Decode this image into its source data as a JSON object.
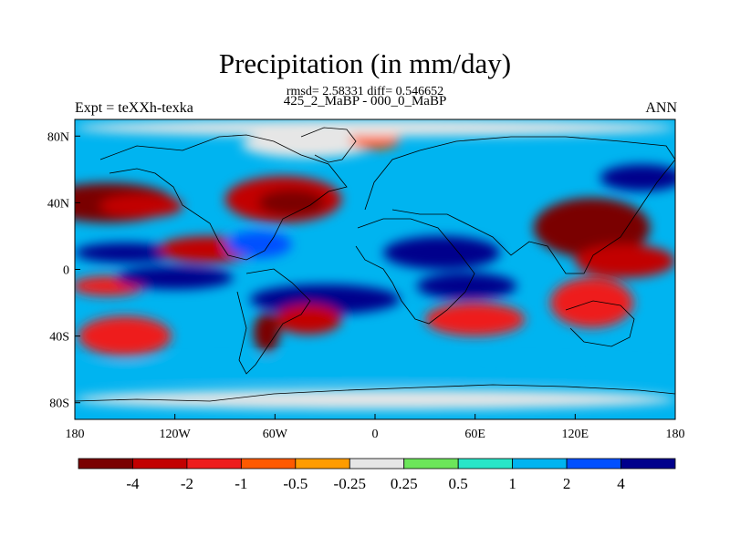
{
  "header": {
    "title": "Precipitation (in mm/day)",
    "stats": "rmsd= 2.58331 diff= 0.546652",
    "experiment_line": "425_2_MaBP - 000_0_MaBP",
    "expt_label": "Expt = teXXh-texka",
    "season": "ANN"
  },
  "axes": {
    "lat_ticks": [
      {
        "label": "80N",
        "value": 80
      },
      {
        "label": "40N",
        "value": 40
      },
      {
        "label": "0",
        "value": 0
      },
      {
        "label": "40S",
        "value": -40
      },
      {
        "label": "80S",
        "value": -80
      }
    ],
    "lon_ticks": [
      {
        "label": "180",
        "value": -180
      },
      {
        "label": "120W",
        "value": -120
      },
      {
        "label": "60W",
        "value": -60
      },
      {
        "label": "0",
        "value": 0
      },
      {
        "label": "60E",
        "value": 60
      },
      {
        "label": "120E",
        "value": 120
      },
      {
        "label": "180",
        "value": 180
      }
    ],
    "lat_range": [
      -90,
      90
    ],
    "lon_range": [
      -180,
      180
    ]
  },
  "colorbar": {
    "colors": [
      "#7a0000",
      "#c20000",
      "#ee1c1c",
      "#ff5a00",
      "#ff9c00",
      "#e6e6e6",
      "#6ce65a",
      "#28e6c8",
      "#00b4f0",
      "#0050ff",
      "#00008c"
    ],
    "labels": [
      "-4",
      "-2",
      "-1",
      "-0.5",
      "-0.25",
      "0.25",
      "0.5",
      "1",
      "2",
      "4"
    ]
  },
  "map_field": {
    "background_color": "#00b4f0",
    "features": [
      {
        "lon": -160,
        "lat": 40,
        "rx": 40,
        "ry": 12,
        "c": 0
      },
      {
        "lon": -140,
        "lat": 38,
        "rx": 25,
        "ry": 7,
        "c": 1
      },
      {
        "lon": -150,
        "lat": 10,
        "rx": 30,
        "ry": 6,
        "c": 10
      },
      {
        "lon": -160,
        "lat": -10,
        "rx": 22,
        "ry": 6,
        "c": 2
      },
      {
        "lon": -150,
        "lat": -40,
        "rx": 28,
        "ry": 12,
        "c": 2
      },
      {
        "lon": -100,
        "lat": 12,
        "rx": 30,
        "ry": 8,
        "c": 1
      },
      {
        "lon": -120,
        "lat": -5,
        "rx": 35,
        "ry": 7,
        "c": 10
      },
      {
        "lon": -70,
        "lat": 15,
        "rx": 20,
        "ry": 8,
        "c": 9
      },
      {
        "lon": -55,
        "lat": 42,
        "rx": 35,
        "ry": 14,
        "c": 1
      },
      {
        "lon": -50,
        "lat": 40,
        "rx": 20,
        "ry": 8,
        "c": 0
      },
      {
        "lon": -40,
        "lat": 75,
        "rx": 40,
        "ry": 8,
        "c": 5
      },
      {
        "lon": 0,
        "lat": 78,
        "rx": 15,
        "ry": 6,
        "c": 3
      },
      {
        "lon": -30,
        "lat": -18,
        "rx": 45,
        "ry": 9,
        "c": 10
      },
      {
        "lon": -40,
        "lat": -30,
        "rx": 20,
        "ry": 9,
        "c": 1
      },
      {
        "lon": -65,
        "lat": -38,
        "rx": 8,
        "ry": 12,
        "c": 0
      },
      {
        "lon": 40,
        "lat": 10,
        "rx": 35,
        "ry": 10,
        "c": 10
      },
      {
        "lon": 55,
        "lat": -10,
        "rx": 30,
        "ry": 8,
        "c": 10
      },
      {
        "lon": 60,
        "lat": -30,
        "rx": 30,
        "ry": 10,
        "c": 2
      },
      {
        "lon": 130,
        "lat": 25,
        "rx": 35,
        "ry": 18,
        "c": 0
      },
      {
        "lon": 150,
        "lat": 5,
        "rx": 30,
        "ry": 10,
        "c": 1
      },
      {
        "lon": 130,
        "lat": -20,
        "rx": 25,
        "ry": 15,
        "c": 2
      },
      {
        "lon": 160,
        "lat": 55,
        "rx": 25,
        "ry": 8,
        "c": 10
      },
      {
        "lon": 0,
        "lat": -60,
        "rx": 180,
        "ry": 6,
        "c": 8
      },
      {
        "lon": 0,
        "lat": -78,
        "rx": 180,
        "ry": 6,
        "c": 5
      },
      {
        "lon": 0,
        "lat": 85,
        "rx": 180,
        "ry": 5,
        "c": 5
      }
    ]
  }
}
